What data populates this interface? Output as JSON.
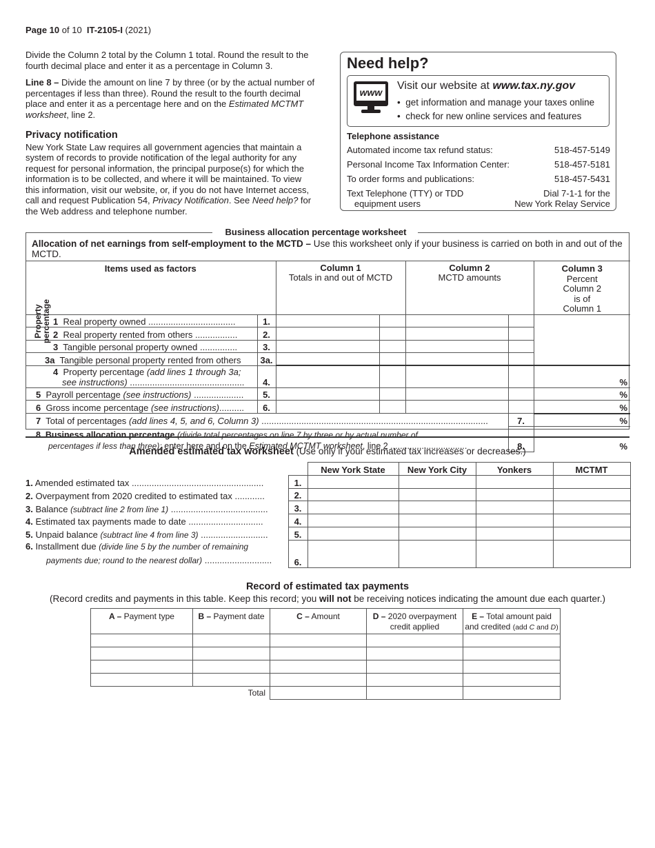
{
  "header": {
    "page_bold": "Page 10",
    "page_rest": " of 10  ",
    "form": "IT-2105-I",
    "year": " (2021)"
  },
  "left": {
    "p1": "Divide the Column 2 total by the Column 1 total. Round the result to the fourth decimal place and enter it as a percentage in Column 3.",
    "p2_bold": "Line 8 –",
    "p2_a": " Divide the amount on line 7 by three (or by the actual number of percentages if less than three). Round the result to the fourth decimal place and enter it as a percentage here and on the ",
    "p2_i": "Estimated MCTMT worksheet",
    "p2_b": ", line 2.",
    "privacy_title": "Privacy notification",
    "p3_a": "New York State Law requires all government agencies that maintain a system of records to provide notification of the legal authority for any request for personal information, the principal purpose(s) for which the information is to be collected, and where it will be maintained. To view this information, visit our website, or, if you do not have Internet access, call and request Publication 54, ",
    "p3_i": "Privacy Notification",
    "p3_b": ". See ",
    "p3_i2": "Need help?",
    "p3_c": " for the Web address and telephone number."
  },
  "help": {
    "title": "Need help?",
    "icon": "computer-monitor-www-icon",
    "icon_text": "www",
    "visit": "Visit our website at ",
    "url": "www.tax.ny.gov",
    "bullets": [
      "get information and manage your taxes online",
      "check for new online services and features"
    ],
    "tel_title": "Telephone assistance",
    "tel": [
      {
        "label": "Automated income tax refund status:",
        "value": "518-457-5149"
      },
      {
        "label": "Personal Income Tax Information Center:",
        "value": "518-457-5181"
      },
      {
        "label": "To order forms and publications:",
        "value": "518-457-5431"
      }
    ],
    "tty_label1": "Text Telephone (TTY) or TDD",
    "tty_label2": "equipment users",
    "tty_value1": "Dial 7-1-1 for the",
    "tty_value2": "New York Relay Service"
  },
  "business": {
    "title": "Business allocation percentage worksheet",
    "intro_bold": "Allocation of net earnings from self-employment to the MCTD –",
    "intro": " Use this worksheet only if your business is carried on both in and out of the MCTD.",
    "col_items": "Items used as factors",
    "col1_title": "Column 1",
    "col1_sub": "Totals in and out of MCTD",
    "col2_title": "Column 2",
    "col2_sub": "MCTD amounts",
    "col3_title": "Column 3",
    "col3_sub": [
      "Percent",
      "Column 2",
      "is of",
      "Column 1"
    ],
    "side_label1": "Property",
    "side_label2": "percentage",
    "pct": "%",
    "rows": [
      {
        "n": "1",
        "label": "Real property owned",
        "dots": " ...................................",
        "box": "1."
      },
      {
        "n": "2",
        "label": "Real property rented from others",
        "dots": " .................",
        "box": "2."
      },
      {
        "n": "3",
        "label": "Tangible personal property owned",
        "dots": " ...............",
        "box": "3."
      },
      {
        "n": "3a",
        "label": "Tangible personal property rented from others",
        "dots": "",
        "box": "3a."
      }
    ],
    "row4": {
      "n": "4",
      "label": "Property percentage ",
      "i1": "(add lines 1 through 3a;",
      "i2": "see instructions)",
      "dots": " ..............................................",
      "box": "4."
    },
    "row5": {
      "n": "5",
      "label": "Payroll percentage ",
      "i": "(see instructions)",
      "dots": " ....................",
      "box": "5."
    },
    "row6": {
      "n": "6",
      "label": "Gross income percentage ",
      "i": "(see instructions)",
      "dots": "..........",
      "box": "6."
    },
    "row7": {
      "n": "7",
      "label": "Total of percentages ",
      "i": "(add lines 4, 5, and 6, Column 3)",
      "dots": " ...........................................................................................",
      "box": "7."
    },
    "row8": {
      "n": "8",
      "bold": "Business allocation percentage ",
      "i1": "(divide total percentages on line 7 by three or by actual number of",
      "i2": "percentages if less than three);",
      "rest": " enter here and on the ",
      "i3": "Estimated MCTMT worksheet",
      "rest2": ", line 2 ................................",
      "box": "8."
    }
  },
  "amended": {
    "title": "Amended estimated tax worksheet",
    "subtitle": " (Use only if your estimated tax increases or decreases.)",
    "columns": [
      "New York State",
      "New York City",
      "Yonkers",
      "MCTMT"
    ],
    "rows": [
      {
        "n": "1.",
        "label": "Amended estimated tax",
        "i": "",
        "dots": " .....................................................",
        "box": "1."
      },
      {
        "n": "2.",
        "label": "Overpayment from 2020 credited to estimated tax",
        "i": "",
        "dots": " ............",
        "box": "2."
      },
      {
        "n": "3.",
        "label": "Balance ",
        "i": "(subtract line 2 from line 1)",
        "dots": " .......................................",
        "box": "3."
      },
      {
        "n": "4.",
        "label": "Estimated tax payments made to date",
        "i": "",
        "dots": " ..............................",
        "box": "4."
      },
      {
        "n": "5.",
        "label": "Unpaid balance ",
        "i": "(subtract line 4 from line 3)",
        "dots": " ...........................",
        "box": "5."
      }
    ],
    "row6": {
      "n": "6.",
      "label": "Installment due ",
      "i1": "(divide line 5 by the number of remaining",
      "i2": "payments due; round to the nearest dollar)",
      "dots": " ...........................",
      "box": "6."
    }
  },
  "record": {
    "title": "Record of estimated tax payments",
    "sub_a": "(Record credits and payments in this table. Keep this record; you ",
    "sub_bold": "will not",
    "sub_b": " be receiving notices indicating the amount due each quarter.)",
    "cols": [
      {
        "b": "A –",
        "t": " Payment type"
      },
      {
        "b": "B –",
        "t": " Payment date"
      },
      {
        "b": "C –",
        "t": " Amount"
      },
      {
        "b": "D –",
        "t": " 2020 overpayment",
        "t2": "credit applied"
      },
      {
        "b": "E –",
        "t": " Total amount paid",
        "t2": "and credited ",
        "s": "(add ",
        "si": "C",
        "s2": " and ",
        "si2": "D",
        ")": ")"
      }
    ],
    "total_label": "Total"
  }
}
